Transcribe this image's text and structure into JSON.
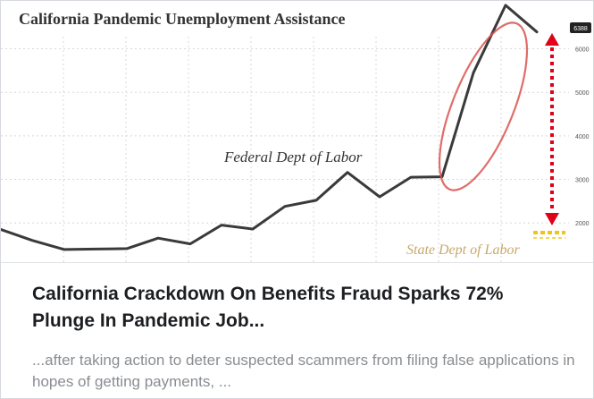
{
  "article": {
    "headline": "California Crackdown On Benefits Fraud Sparks 72% Plunge In Pandemic Job...",
    "excerpt": "...after taking action to deter suspected scammers from filing false applications in hopes of getting payments, ..."
  },
  "chart_data": {
    "type": "line",
    "title": "California Pandemic Unemployment Assistance",
    "ylim": [
      1100,
      7100
    ],
    "yticks": [
      2000,
      3000,
      4000,
      5000,
      6000
    ],
    "last_value_label": "6388",
    "grid": true,
    "series": [
      {
        "values": [
          1850,
          1600,
          1390,
          1400,
          1410,
          1650,
          1520,
          1950,
          1860,
          2380,
          2520,
          3160,
          2600,
          3050,
          3060,
          5450,
          7000,
          6388
        ]
      }
    ],
    "annotations": [
      {
        "text": "Federal Dept of Labor"
      },
      {
        "text": "State Dept of Labor"
      }
    ],
    "colors": {
      "line": "#3a3a3a",
      "ellipse": "#d9534f",
      "arrow": "#e0001b",
      "state_dashes": "#f0c419",
      "state_text": "#c9a86a",
      "grid": "#d8d8d8",
      "title": "#333333"
    }
  }
}
